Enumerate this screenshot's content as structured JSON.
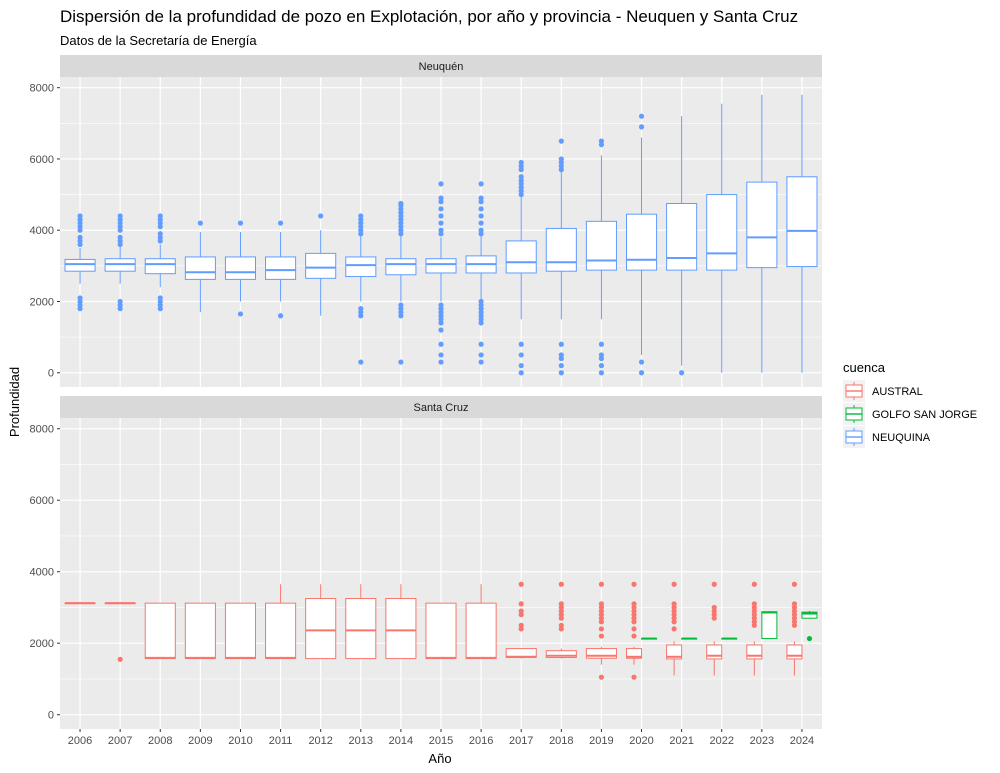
{
  "chart_data": {
    "type": "boxplot",
    "title": "Dispersión de la profundidad de pozo en Explotación, por año y provincia - Neuquen y Santa Cruz",
    "subtitle": "Datos de la Secretaría de Energía",
    "xlabel": "Año",
    "ylabel": "Profundidad",
    "ylim": [
      -400,
      8300
    ],
    "yticks": [
      0,
      2000,
      4000,
      6000,
      8000
    ],
    "categories": [
      "2006",
      "2007",
      "2008",
      "2009",
      "2010",
      "2011",
      "2012",
      "2013",
      "2014",
      "2015",
      "2016",
      "2017",
      "2018",
      "2019",
      "2020",
      "2021",
      "2022",
      "2023",
      "2024"
    ],
    "grid": true,
    "legend": {
      "title": "cuenca",
      "position": "right",
      "items": [
        {
          "name": "AUSTRAL",
          "color": "#f8766d"
        },
        {
          "name": "GOLFO SAN JORGE",
          "color": "#00ba38"
        },
        {
          "name": "NEUQUINA",
          "color": "#619cff"
        }
      ]
    },
    "panels": [
      {
        "name": "Neuquén",
        "series": [
          {
            "name": "NEUQUINA",
            "color": "#619cff",
            "boxes": [
              {
                "x": "2006",
                "min": 2500,
                "q1": 2850,
                "median": 3050,
                "q3": 3180,
                "max": 3500,
                "outliers": [
                  1800,
                  1900,
                  2000,
                  2100,
                  3600,
                  3700,
                  3800,
                  4000,
                  4100,
                  4200,
                  4300,
                  4400
                ]
              },
              {
                "x": "2007",
                "min": 2500,
                "q1": 2850,
                "median": 3050,
                "q3": 3200,
                "max": 3550,
                "outliers": [
                  1800,
                  1900,
                  2000,
                  3600,
                  3700,
                  3800,
                  4000,
                  4100,
                  4200,
                  4300,
                  4400
                ]
              },
              {
                "x": "2008",
                "min": 2400,
                "q1": 2780,
                "median": 3050,
                "q3": 3200,
                "max": 3600,
                "outliers": [
                  1800,
                  1900,
                  2000,
                  2100,
                  3700,
                  3800,
                  3900,
                  4100,
                  4200,
                  4300,
                  4400
                ]
              },
              {
                "x": "2009",
                "min": 1700,
                "q1": 2620,
                "median": 2820,
                "q3": 3250,
                "max": 3950,
                "outliers": [
                  4200
                ]
              },
              {
                "x": "2010",
                "min": 2000,
                "q1": 2620,
                "median": 2820,
                "q3": 3250,
                "max": 3950,
                "outliers": [
                  1650,
                  4200
                ]
              },
              {
                "x": "2011",
                "min": 2000,
                "q1": 2620,
                "median": 2880,
                "q3": 3250,
                "max": 3950,
                "outliers": [
                  1600,
                  4200
                ]
              },
              {
                "x": "2012",
                "min": 1600,
                "q1": 2650,
                "median": 2950,
                "q3": 3350,
                "max": 4000,
                "outliers": [
                  4400
                ]
              },
              {
                "x": "2013",
                "min": 2000,
                "q1": 2700,
                "median": 3020,
                "q3": 3250,
                "max": 3900,
                "outliers": [
                  300,
                  1600,
                  1700,
                  1800,
                  3900,
                  4000,
                  4100,
                  4200,
                  4300,
                  4400
                ]
              },
              {
                "x": "2014",
                "min": 2000,
                "q1": 2750,
                "median": 3050,
                "q3": 3200,
                "max": 3900,
                "outliers": [
                  300,
                  1600,
                  1700,
                  1800,
                  1900,
                  3900,
                  4000,
                  4100,
                  4200,
                  4300,
                  4400,
                  4500,
                  4600,
                  4700,
                  4750
                ]
              },
              {
                "x": "2015",
                "min": 2000,
                "q1": 2800,
                "median": 3050,
                "q3": 3200,
                "max": 3800,
                "outliers": [
                  300,
                  500,
                  800,
                  1200,
                  1400,
                  1500,
                  1600,
                  1700,
                  1800,
                  1900,
                  3900,
                  4000,
                  4200,
                  4400,
                  4600,
                  4800,
                  4900,
                  5300
                ]
              },
              {
                "x": "2016",
                "min": 2000,
                "q1": 2800,
                "median": 3050,
                "q3": 3280,
                "max": 3900,
                "outliers": [
                  300,
                  500,
                  800,
                  1400,
                  1500,
                  1600,
                  1700,
                  1800,
                  1900,
                  2000,
                  3900,
                  4000,
                  4200,
                  4400,
                  4600,
                  4800,
                  4900,
                  5300
                ]
              },
              {
                "x": "2017",
                "min": 1500,
                "q1": 2800,
                "median": 3100,
                "q3": 3700,
                "max": 4950,
                "outliers": [
                  0,
                  200,
                  500,
                  800,
                  5000,
                  5100,
                  5200,
                  5300,
                  5400,
                  5500,
                  5700,
                  5800,
                  5900
                ]
              },
              {
                "x": "2018",
                "min": 1500,
                "q1": 2850,
                "median": 3100,
                "q3": 4050,
                "max": 5650,
                "outliers": [
                  0,
                  200,
                  400,
                  500,
                  800,
                  5700,
                  5800,
                  5900,
                  6000,
                  6500
                ]
              },
              {
                "x": "2019",
                "min": 1500,
                "q1": 2880,
                "median": 3150,
                "q3": 4250,
                "max": 6100,
                "outliers": [
                  0,
                  200,
                  400,
                  500,
                  800,
                  6400,
                  6500
                ]
              },
              {
                "x": "2020",
                "min": 500,
                "q1": 2880,
                "median": 3170,
                "q3": 4450,
                "max": 6600,
                "outliers": [
                  0,
                  300,
                  6900,
                  7200
                ]
              },
              {
                "x": "2021",
                "min": 200,
                "q1": 2880,
                "median": 3220,
                "q3": 4750,
                "max": 7200,
                "outliers": [
                  0
                ]
              },
              {
                "x": "2022",
                "min": 0,
                "q1": 2880,
                "median": 3350,
                "q3": 5000,
                "max": 7550,
                "outliers": []
              },
              {
                "x": "2023",
                "min": 0,
                "q1": 2950,
                "median": 3800,
                "q3": 5350,
                "max": 7800,
                "outliers": []
              },
              {
                "x": "2024",
                "min": 0,
                "q1": 2980,
                "median": 3980,
                "q3": 5500,
                "max": 7800,
                "outliers": []
              }
            ]
          }
        ]
      },
      {
        "name": "Santa Cruz",
        "series": [
          {
            "name": "AUSTRAL",
            "color": "#f8766d",
            "boxes": [
              {
                "x": "2006",
                "min": 3120,
                "q1": 3120,
                "median": 3120,
                "q3": 3120,
                "max": 3120,
                "outliers": []
              },
              {
                "x": "2007",
                "min": 3120,
                "q1": 3120,
                "median": 3120,
                "q3": 3120,
                "max": 3120,
                "outliers": [
                  1550
                ]
              },
              {
                "x": "2008",
                "min": 1570,
                "q1": 1570,
                "median": 1590,
                "q3": 3120,
                "max": 3120,
                "outliers": []
              },
              {
                "x": "2009",
                "min": 1570,
                "q1": 1570,
                "median": 1590,
                "q3": 3120,
                "max": 3120,
                "outliers": []
              },
              {
                "x": "2010",
                "min": 1570,
                "q1": 1570,
                "median": 1590,
                "q3": 3120,
                "max": 3120,
                "outliers": []
              },
              {
                "x": "2011",
                "min": 1570,
                "q1": 1570,
                "median": 1590,
                "q3": 3120,
                "max": 3650,
                "outliers": []
              },
              {
                "x": "2012",
                "min": 1570,
                "q1": 1570,
                "median": 2360,
                "q3": 3250,
                "max": 3650,
                "outliers": []
              },
              {
                "x": "2013",
                "min": 1570,
                "q1": 1570,
                "median": 2360,
                "q3": 3250,
                "max": 3650,
                "outliers": []
              },
              {
                "x": "2014",
                "min": 1570,
                "q1": 1570,
                "median": 2360,
                "q3": 3250,
                "max": 3650,
                "outliers": []
              },
              {
                "x": "2015",
                "min": 1570,
                "q1": 1570,
                "median": 1590,
                "q3": 3120,
                "max": 3120,
                "outliers": []
              },
              {
                "x": "2016",
                "min": 1570,
                "q1": 1570,
                "median": 1590,
                "q3": 3120,
                "max": 3650,
                "outliers": []
              },
              {
                "x": "2017",
                "min": 1570,
                "q1": 1600,
                "median": 1620,
                "q3": 1850,
                "max": 1850,
                "outliers": [
                  2400,
                  2500,
                  2800,
                  2900,
                  3100,
                  3650
                ]
              },
              {
                "x": "2018",
                "min": 1570,
                "q1": 1600,
                "median": 1650,
                "q3": 1790,
                "max": 1850,
                "outliers": [
                  2400,
                  2500,
                  2700,
                  2800,
                  2900,
                  3000,
                  3100,
                  3650
                ]
              },
              {
                "x": "2019",
                "min": 1400,
                "q1": 1580,
                "median": 1650,
                "q3": 1850,
                "max": 1900,
                "outliers": [
                  1050,
                  2200,
                  2400,
                  2600,
                  2700,
                  2800,
                  2900,
                  3000,
                  3100,
                  3650
                ]
              },
              {
                "x": "2020",
                "min": 1400,
                "q1": 1580,
                "median": 1620,
                "q3": 1850,
                "max": 1900,
                "outliers": [
                  1050,
                  2200,
                  2400,
                  2600,
                  2700,
                  2800,
                  2900,
                  3000,
                  3100,
                  3650
                ]
              },
              {
                "x": "2021",
                "min": 1100,
                "q1": 1560,
                "median": 1620,
                "q3": 1950,
                "max": 2050,
                "outliers": [
                  2400,
                  2600,
                  2700,
                  2800,
                  2900,
                  3000,
                  3100,
                  3650
                ]
              },
              {
                "x": "2022",
                "min": 1100,
                "q1": 1560,
                "median": 1650,
                "q3": 1950,
                "max": 2050,
                "outliers": [
                  2700,
                  2800,
                  2900,
                  3000,
                  3650
                ]
              },
              {
                "x": "2023",
                "min": 1100,
                "q1": 1560,
                "median": 1650,
                "q3": 1950,
                "max": 2050,
                "outliers": [
                  2500,
                  2600,
                  2700,
                  2800,
                  2900,
                  3000,
                  3100,
                  3650
                ]
              },
              {
                "x": "2024",
                "min": 1100,
                "q1": 1560,
                "median": 1650,
                "q3": 1950,
                "max": 2050,
                "outliers": [
                  2500,
                  2600,
                  2700,
                  2800,
                  2900,
                  3000,
                  3100,
                  3650
                ]
              }
            ]
          },
          {
            "name": "GOLFO SAN JORGE",
            "color": "#00ba38",
            "boxes": [
              {
                "x": "2020",
                "min": 2130,
                "q1": 2130,
                "median": 2130,
                "q3": 2130,
                "max": 2130,
                "outliers": []
              },
              {
                "x": "2021",
                "min": 2130,
                "q1": 2130,
                "median": 2130,
                "q3": 2130,
                "max": 2130,
                "outliers": []
              },
              {
                "x": "2022",
                "min": 2130,
                "q1": 2130,
                "median": 2130,
                "q3": 2130,
                "max": 2130,
                "outliers": []
              },
              {
                "x": "2023",
                "min": 2130,
                "q1": 2130,
                "median": 2860,
                "q3": 2880,
                "max": 2900,
                "outliers": []
              },
              {
                "x": "2024",
                "min": 2700,
                "q1": 2700,
                "median": 2830,
                "q3": 2870,
                "max": 2900,
                "outliers": [
                  2130
                ]
              }
            ]
          }
        ]
      }
    ]
  }
}
